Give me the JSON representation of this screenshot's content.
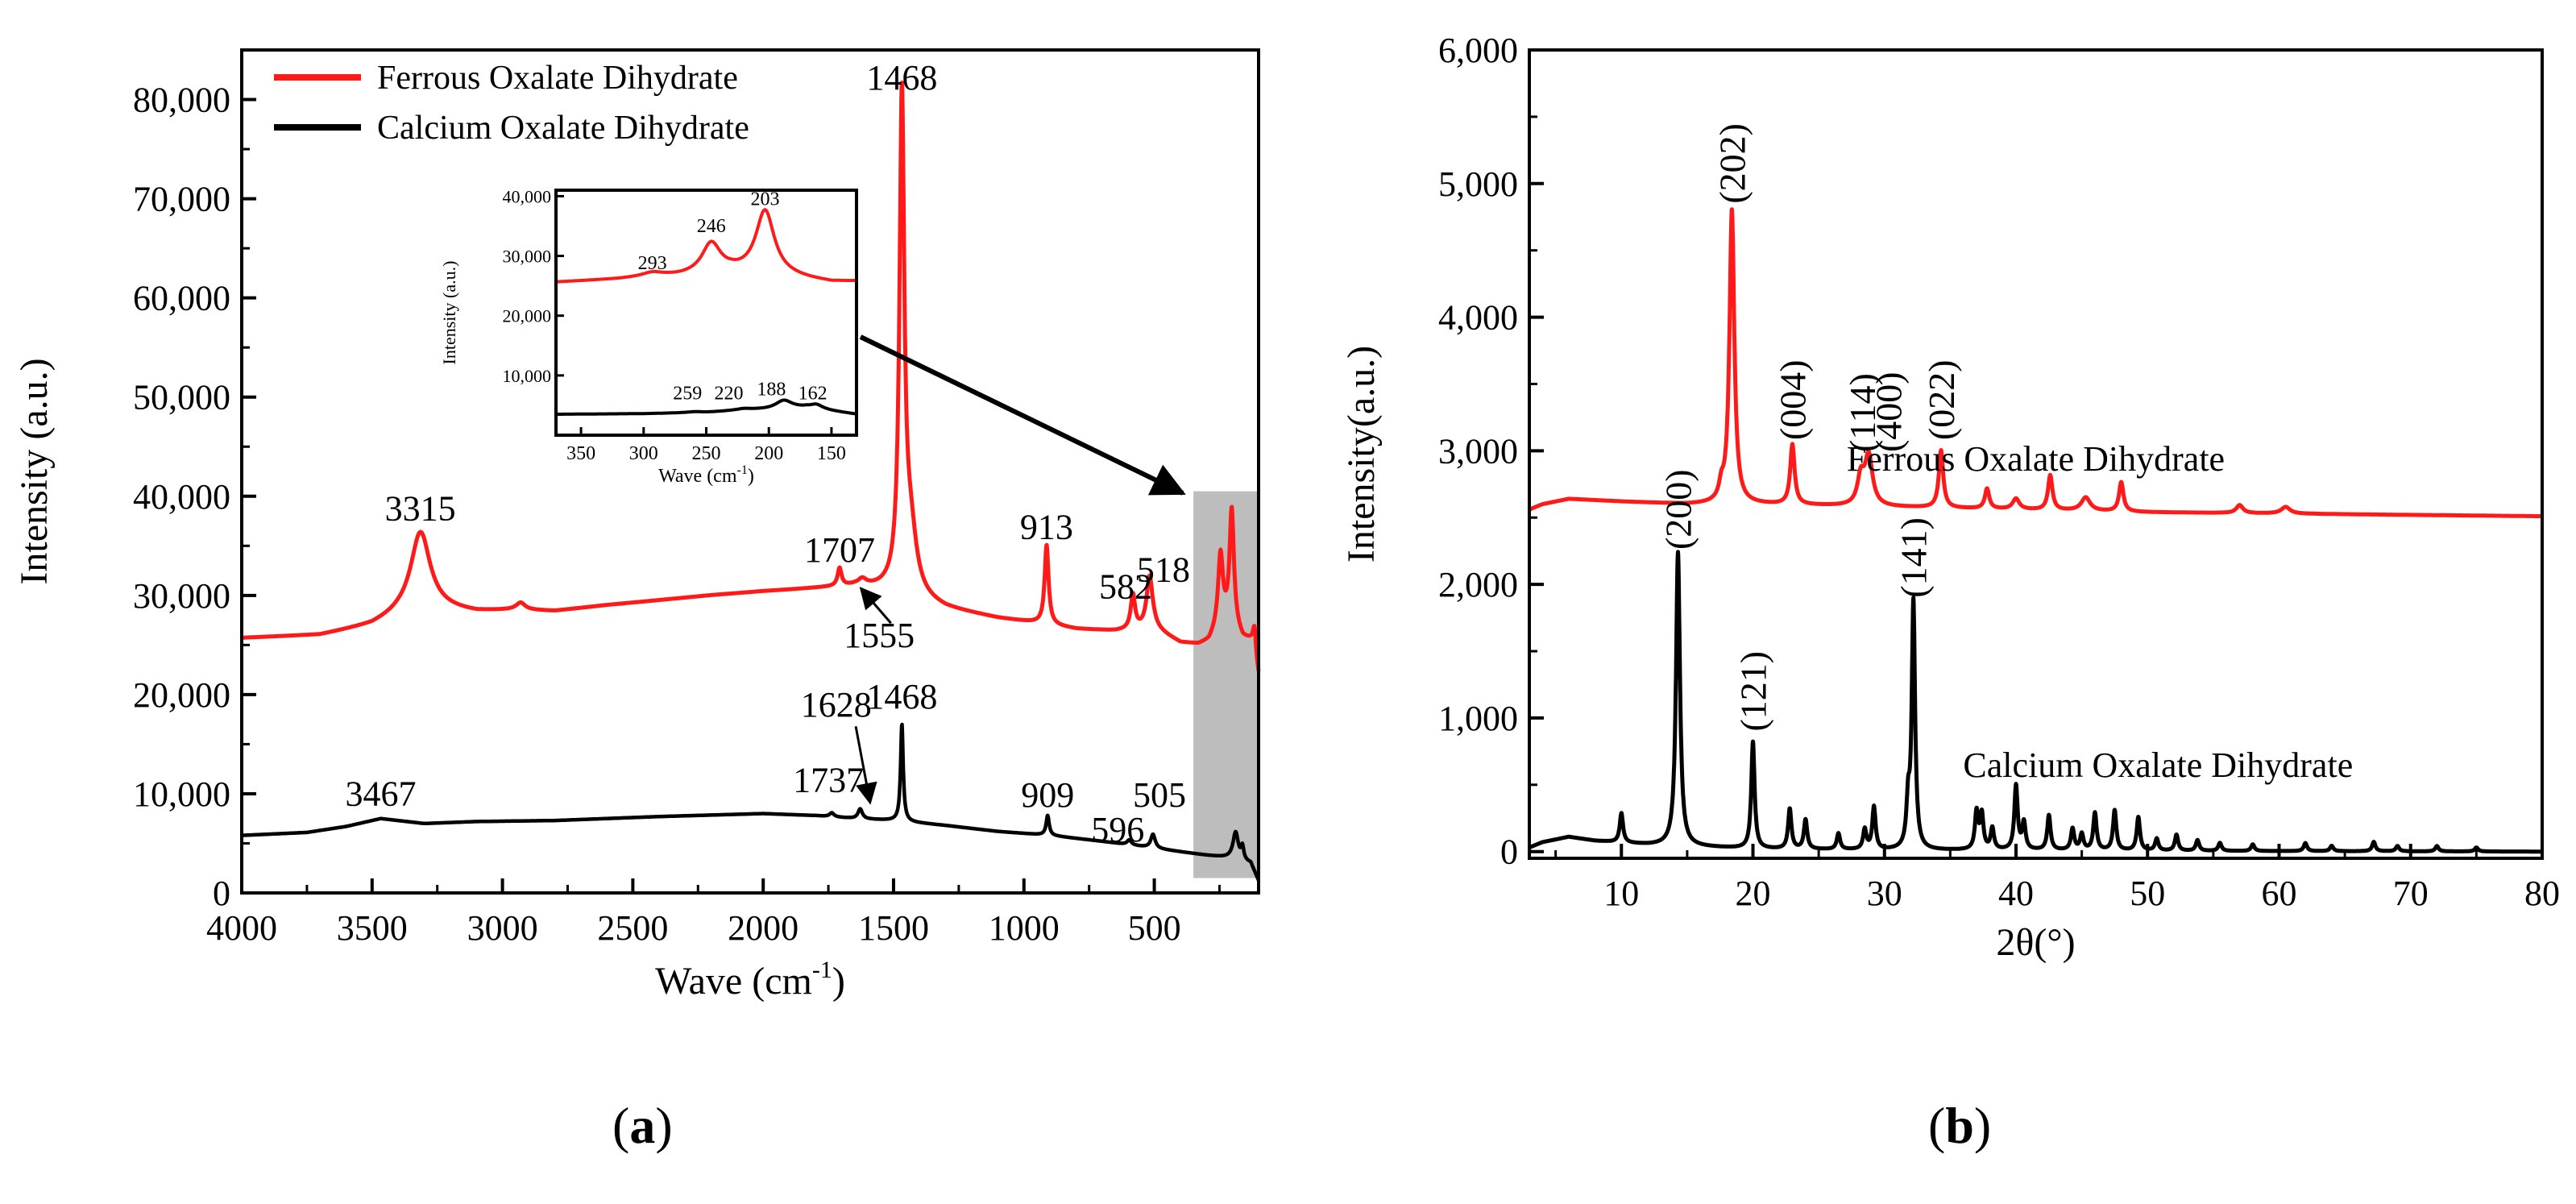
{
  "colors": {
    "ferrous": "#ff1a1a",
    "calcium": "#000000",
    "highlight": "#bdbdbd"
  },
  "panel_labels": {
    "a": "a",
    "b": "b",
    "open": "(",
    "close": ")"
  },
  "chart_data": [
    {
      "id": "raman",
      "type": "line",
      "xlabel": "Wave (cm",
      "xlabel_sup": "-1",
      "xlabel_end": ")",
      "ylabel": "Intensity (a.u.)",
      "xlim": [
        4000,
        100
      ],
      "ylim": [
        0,
        85000
      ],
      "x_ticks": [
        4000,
        3500,
        3000,
        2500,
        2000,
        1500,
        1000,
        500
      ],
      "x_tick_labels": [
        "4000",
        "3500",
        "3000",
        "2500",
        "2000",
        "1500",
        "1000",
        "500"
      ],
      "y_ticks": [
        0,
        10000,
        20000,
        30000,
        40000,
        50000,
        60000,
        70000,
        80000
      ],
      "y_tick_labels": [
        "0",
        "10,000",
        "20,000",
        "30,000",
        "40,000",
        "50,000",
        "60,000",
        "70,000",
        "80,000"
      ],
      "legend": {
        "position": "top-left",
        "entries": [
          "Ferrous Oxalate Dihydrate",
          "Calcium Oxalate Dihydrate"
        ]
      },
      "highlight_region": [
        350,
        100
      ],
      "series": [
        {
          "name": "Ferrous Oxalate Dihydrate",
          "baseline": [
            [
              4000,
              25700
            ],
            [
              3700,
              26000
            ],
            [
              3500,
              27000
            ],
            [
              3400,
              28000
            ],
            [
              3300,
              28700
            ],
            [
              3100,
              28300
            ],
            [
              2950,
              28500
            ],
            [
              2800,
              28400
            ],
            [
              2600,
              29000
            ],
            [
              2400,
              29500
            ],
            [
              2200,
              30000
            ],
            [
              2000,
              30400
            ],
            [
              1800,
              30700
            ],
            [
              1650,
              30900
            ],
            [
              1500,
              30500
            ],
            [
              1300,
              28700
            ],
            [
              1100,
              27700
            ],
            [
              950,
              27200
            ],
            [
              800,
              26600
            ],
            [
              650,
              26400
            ],
            [
              500,
              26600
            ],
            [
              400,
              25200
            ],
            [
              330,
              25000
            ],
            [
              290,
              25300
            ],
            [
              246,
              27000
            ],
            [
              203,
              27000
            ],
            [
              160,
              25500
            ],
            [
              120,
              25500
            ],
            [
              100,
              22000
            ]
          ],
          "peaks": [
            [
              3315,
              7800,
              45
            ],
            [
              2930,
              700,
              20
            ],
            [
              1707,
              1800,
              9
            ],
            [
              1620,
              600,
              18
            ],
            [
              1468,
              49000,
              11
            ],
            [
              1435,
              6000,
              28
            ],
            [
              913,
              8000,
              9
            ],
            [
              582,
              3500,
              10
            ],
            [
              518,
              5300,
              14
            ],
            [
              246,
              7000,
              11
            ],
            [
              203,
              11500,
              10
            ],
            [
              115,
              2000,
              5
            ]
          ]
        },
        {
          "name": "Calcium Oxalate Dihydrate",
          "baseline": [
            [
              4000,
              5800
            ],
            [
              3750,
              6100
            ],
            [
              3600,
              6700
            ],
            [
              3467,
              7500
            ],
            [
              3300,
              7000
            ],
            [
              3100,
              7200
            ],
            [
              2800,
              7300
            ],
            [
              2400,
              7700
            ],
            [
              2000,
              8000
            ],
            [
              1800,
              7800
            ],
            [
              1650,
              7500
            ],
            [
              1500,
              7300
            ],
            [
              1300,
              6800
            ],
            [
              1100,
              6200
            ],
            [
              900,
              5800
            ],
            [
              700,
              5200
            ],
            [
              500,
              4500
            ],
            [
              300,
              3800
            ],
            [
              200,
              3500
            ],
            [
              130,
              3000
            ],
            [
              100,
              1200
            ]
          ],
          "peaks": [
            [
              1737,
              400,
              10
            ],
            [
              1628,
              1000,
              10
            ],
            [
              1468,
              9800,
              6
            ],
            [
              909,
              2000,
              7
            ],
            [
              596,
              500,
              10
            ],
            [
              505,
              1400,
              10
            ],
            [
              188,
              2700,
              12
            ],
            [
              162,
              1300,
              6
            ]
          ]
        }
      ],
      "peak_labels_ferrous": [
        {
          "text": "3315",
          "x": 3315,
          "y": 37600
        },
        {
          "text": "1468",
          "x": 1468,
          "y": 81000
        },
        {
          "text": "1707",
          "x": 1707,
          "y": 33400
        },
        {
          "text": "913",
          "x": 913,
          "y": 35700
        },
        {
          "text": "582",
          "x": 610,
          "y": 29700
        },
        {
          "text": "518",
          "x": 465,
          "y": 31400
        },
        {
          "text": "1555",
          "x": 1555,
          "y": 24800
        }
      ],
      "peak_labels_calcium": [
        {
          "text": "3467",
          "x": 3467,
          "y": 8800
        },
        {
          "text": "1737",
          "x": 1750,
          "y": 10200
        },
        {
          "text": "1628",
          "x": 1720,
          "y": 17800
        },
        {
          "text": "1468",
          "x": 1468,
          "y": 18600
        },
        {
          "text": "909",
          "x": 909,
          "y": 8700
        },
        {
          "text": "596",
          "x": 640,
          "y": 5200
        },
        {
          "text": "505",
          "x": 480,
          "y": 8700
        }
      ],
      "inset": {
        "xlabel": "Wave (cm",
        "xlabel_sup": "-1",
        "xlabel_end": ")",
        "ylabel": "Intensity (a.u.)",
        "xlim": [
          370,
          130
        ],
        "ylim": [
          0,
          41000
        ],
        "x_ticks": [
          350,
          300,
          250,
          200,
          150
        ],
        "x_tick_labels": [
          "350",
          "300",
          "250",
          "200",
          "150"
        ],
        "y_ticks": [
          10000,
          20000,
          30000,
          40000
        ],
        "y_tick_labels": [
          "10,000",
          "20,000",
          "30,000",
          "40,000"
        ],
        "ferrous_labels": [
          {
            "text": "293",
            "x": 293,
            "y": 27800
          },
          {
            "text": "246",
            "x": 246,
            "y": 34000
          },
          {
            "text": "203",
            "x": 203,
            "y": 38500
          }
        ],
        "calcium_labels": [
          {
            "text": "259",
            "x": 265,
            "y": 6000
          },
          {
            "text": "220",
            "x": 232,
            "y": 6000
          },
          {
            "text": "188",
            "x": 198,
            "y": 6700
          },
          {
            "text": "162",
            "x": 165,
            "y": 6000
          }
        ]
      }
    },
    {
      "id": "xrd",
      "type": "line",
      "xlabel": "2θ(°)",
      "ylabel": "Intensity(a.u.)",
      "xlim": [
        3,
        80
      ],
      "ylim": [
        -50,
        6000
      ],
      "x_ticks": [
        10,
        20,
        30,
        40,
        50,
        60,
        70,
        80
      ],
      "x_tick_labels": [
        "10",
        "20",
        "30",
        "40",
        "50",
        "60",
        "70",
        "80"
      ],
      "y_ticks": [
        0,
        1000,
        2000,
        3000,
        4000,
        5000,
        6000
      ],
      "y_tick_labels": [
        "0",
        "1,000",
        "2,000",
        "3,000",
        "4,000",
        "5,000",
        "6,000"
      ],
      "series": [
        {
          "name": "Ferrous Oxalate Dihydrate",
          "baseline": [
            [
              3,
              2560
            ],
            [
              4,
              2600
            ],
            [
              6,
              2640
            ],
            [
              10,
              2620
            ],
            [
              15,
              2600
            ],
            [
              20,
              2600
            ],
            [
              30,
              2580
            ],
            [
              40,
              2560
            ],
            [
              50,
              2540
            ],
            [
              60,
              2530
            ],
            [
              70,
              2520
            ],
            [
              80,
              2510
            ]
          ],
          "peaks": [
            [
              18.4,
              2200,
              0.22
            ],
            [
              17.6,
              100,
              0.2
            ],
            [
              23.0,
              450,
              0.2
            ],
            [
              28.8,
              370,
              0.35
            ],
            [
              28.2,
              200,
              0.3
            ],
            [
              34.3,
              430,
              0.2
            ],
            [
              37.8,
              150,
              0.2
            ],
            [
              40.0,
              80,
              0.3
            ],
            [
              42.6,
              260,
              0.2
            ],
            [
              45.3,
              100,
              0.4
            ],
            [
              48.0,
              220,
              0.2
            ],
            [
              57.0,
              60,
              0.3
            ],
            [
              60.5,
              50,
              0.4
            ]
          ],
          "label": {
            "text": "Ferrous Oxalate Dihydrate",
            "x": 41.5,
            "y": 2850
          },
          "hkl": [
            {
              "text": "(202)",
              "x": 18.4,
              "y": 4850
            },
            {
              "text": "(004)",
              "x": 23.0,
              "y": 3080
            },
            {
              "text": "(114)",
              "x": 28.3,
              "y": 2990
            },
            {
              "text": "(400)",
              "x": 30.3,
              "y": 2990
            },
            {
              "text": "(022)",
              "x": 34.3,
              "y": 3080
            }
          ]
        },
        {
          "name": "Calcium Oxalate Dihydrate",
          "baseline": [
            [
              3,
              30
            ],
            [
              4,
              70
            ],
            [
              6,
              110
            ],
            [
              8,
              80
            ],
            [
              12,
              50
            ],
            [
              20,
              20
            ],
            [
              30,
              10
            ],
            [
              40,
              10
            ],
            [
              50,
              5
            ],
            [
              80,
              0
            ]
          ],
          "peaks": [
            [
              10.0,
              220,
              0.15
            ],
            [
              14.3,
              2200,
              0.18
            ],
            [
              20.0,
              800,
              0.15
            ],
            [
              22.8,
              300,
              0.15
            ],
            [
              24.0,
              220,
              0.15
            ],
            [
              26.5,
              120,
              0.15
            ],
            [
              28.5,
              150,
              0.15
            ],
            [
              29.2,
              320,
              0.15
            ],
            [
              31.8,
              320,
              0.15
            ],
            [
              32.2,
              1850,
              0.15
            ],
            [
              37.0,
              280,
              0.15
            ],
            [
              37.4,
              260,
              0.15
            ],
            [
              38.2,
              160,
              0.15
            ],
            [
              40.0,
              480,
              0.15
            ],
            [
              40.6,
              200,
              0.15
            ],
            [
              42.5,
              260,
              0.15
            ],
            [
              44.3,
              160,
              0.15
            ],
            [
              45.0,
              120,
              0.15
            ],
            [
              46.0,
              280,
              0.15
            ],
            [
              47.5,
              300,
              0.15
            ],
            [
              49.3,
              250,
              0.15
            ],
            [
              50.7,
              90,
              0.15
            ],
            [
              52.2,
              120,
              0.15
            ],
            [
              53.8,
              80,
              0.15
            ],
            [
              55.5,
              60,
              0.15
            ],
            [
              58.0,
              50,
              0.15
            ],
            [
              62.0,
              60,
              0.15
            ],
            [
              64.0,
              40,
              0.15
            ],
            [
              67.2,
              70,
              0.15
            ],
            [
              69.0,
              40,
              0.15
            ],
            [
              72.0,
              40,
              0.15
            ],
            [
              75.0,
              30,
              0.15
            ]
          ],
          "label": {
            "text": "Calcium Oxalate Dihydrate",
            "x": 50.8,
            "y": 560
          },
          "hkl": [
            {
              "text": "(200)",
              "x": 14.3,
              "y": 2260
            },
            {
              "text": "(121)",
              "x": 20.0,
              "y": 900
            },
            {
              "text": "(141)",
              "x": 32.2,
              "y": 1900
            }
          ]
        }
      ]
    }
  ]
}
